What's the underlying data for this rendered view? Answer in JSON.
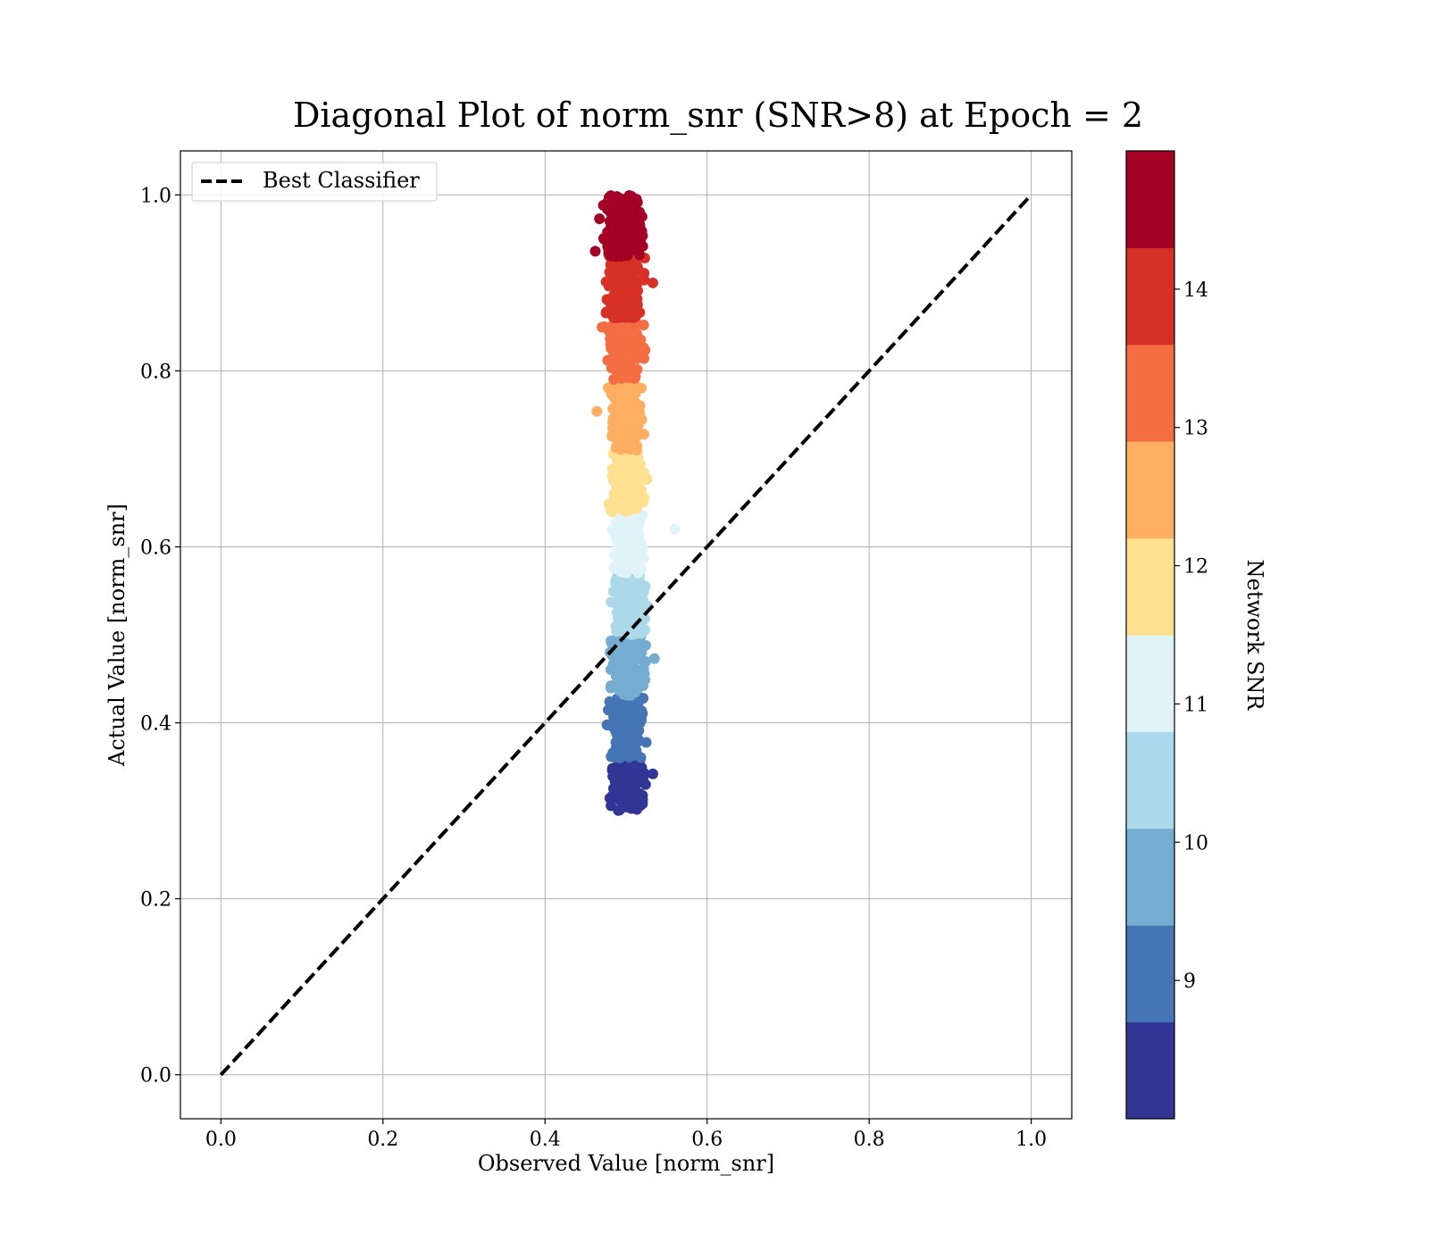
{
  "chart_data": {
    "type": "scatter",
    "title": "Diagonal Plot of norm_snr (SNR>8) at Epoch = 2",
    "xlabel": "Observed Value [norm_snr]",
    "ylabel": "Actual Value [norm_snr]",
    "xlim": [
      -0.05,
      1.05
    ],
    "ylim": [
      -0.05,
      1.05
    ],
    "x_ticks": [
      "0.0",
      "0.2",
      "0.4",
      "0.6",
      "0.8",
      "1.0"
    ],
    "y_ticks": [
      "0.0",
      "0.2",
      "0.4",
      "0.6",
      "0.8",
      "1.0"
    ],
    "grid": true,
    "legend": {
      "placement": "upper-left",
      "entries": [
        "Best Classifier"
      ]
    },
    "reference_line": {
      "name": "Best Classifier",
      "style": "dashed",
      "color": "#000000",
      "x": [
        0,
        1
      ],
      "y": [
        0,
        1
      ]
    },
    "colorbar": {
      "label": "Network SNR",
      "range": [
        8,
        15
      ],
      "ticks": [
        "9",
        "10",
        "11",
        "12",
        "13",
        "14"
      ],
      "bands": [
        {
          "from": 8.0,
          "to": 8.7,
          "color": "#313695"
        },
        {
          "from": 8.7,
          "to": 9.4,
          "color": "#4575b4"
        },
        {
          "from": 9.4,
          "to": 10.1,
          "color": "#74add1"
        },
        {
          "from": 10.1,
          "to": 10.8,
          "color": "#abd9e9"
        },
        {
          "from": 10.8,
          "to": 11.5,
          "color": "#e0f3f8"
        },
        {
          "from": 11.5,
          "to": 12.2,
          "color": "#fee090"
        },
        {
          "from": 12.2,
          "to": 12.9,
          "color": "#fdae61"
        },
        {
          "from": 12.9,
          "to": 13.6,
          "color": "#f46d43"
        },
        {
          "from": 13.6,
          "to": 14.3,
          "color": "#d73027"
        },
        {
          "from": 14.3,
          "to": 15.0,
          "color": "#a50026"
        }
      ]
    },
    "scatter_clusters": [
      {
        "snr_band": "8.0-8.7",
        "color": "#313695",
        "x_center": 0.502,
        "x_spread": 0.025,
        "y_min": 0.3,
        "y_max": 0.36
      },
      {
        "snr_band": "8.7-9.4",
        "color": "#4575b4",
        "x_center": 0.502,
        "x_spread": 0.027,
        "y_min": 0.36,
        "y_max": 0.43
      },
      {
        "snr_band": "9.4-10.1",
        "color": "#74add1",
        "x_center": 0.502,
        "x_spread": 0.026,
        "y_min": 0.43,
        "y_max": 0.5
      },
      {
        "snr_band": "10.1-10.8",
        "color": "#abd9e9",
        "x_center": 0.502,
        "x_spread": 0.026,
        "y_min": 0.5,
        "y_max": 0.57
      },
      {
        "snr_band": "10.8-11.5",
        "color": "#e0f3f8",
        "x_center": 0.502,
        "x_spread": 0.025,
        "y_min": 0.57,
        "y_max": 0.64
      },
      {
        "snr_band": "11.5-12.2",
        "color": "#fee090",
        "x_center": 0.5,
        "x_spread": 0.027,
        "y_min": 0.64,
        "y_max": 0.71
      },
      {
        "snr_band": "12.2-12.9",
        "color": "#fdae61",
        "x_center": 0.5,
        "x_spread": 0.028,
        "y_min": 0.71,
        "y_max": 0.79
      },
      {
        "snr_band": "12.9-13.6",
        "color": "#f46d43",
        "x_center": 0.498,
        "x_spread": 0.029,
        "y_min": 0.79,
        "y_max": 0.86
      },
      {
        "snr_band": "13.6-14.3",
        "color": "#d73027",
        "x_center": 0.498,
        "x_spread": 0.028,
        "y_min": 0.86,
        "y_max": 0.93
      },
      {
        "snr_band": "14.3-15.0",
        "color": "#a50026",
        "x_center": 0.496,
        "x_spread": 0.03,
        "y_min": 0.93,
        "y_max": 1.0
      }
    ],
    "outliers": [
      {
        "x": 0.56,
        "y": 0.62,
        "color": "#e0f3f8"
      },
      {
        "x": 0.535,
        "y": 0.473,
        "color": "#74add1"
      },
      {
        "x": 0.533,
        "y": 0.9,
        "color": "#d73027"
      },
      {
        "x": 0.462,
        "y": 0.936,
        "color": "#a50026"
      },
      {
        "x": 0.464,
        "y": 0.754,
        "color": "#fdae61"
      },
      {
        "x": 0.533,
        "y": 0.342,
        "color": "#313695"
      }
    ]
  }
}
